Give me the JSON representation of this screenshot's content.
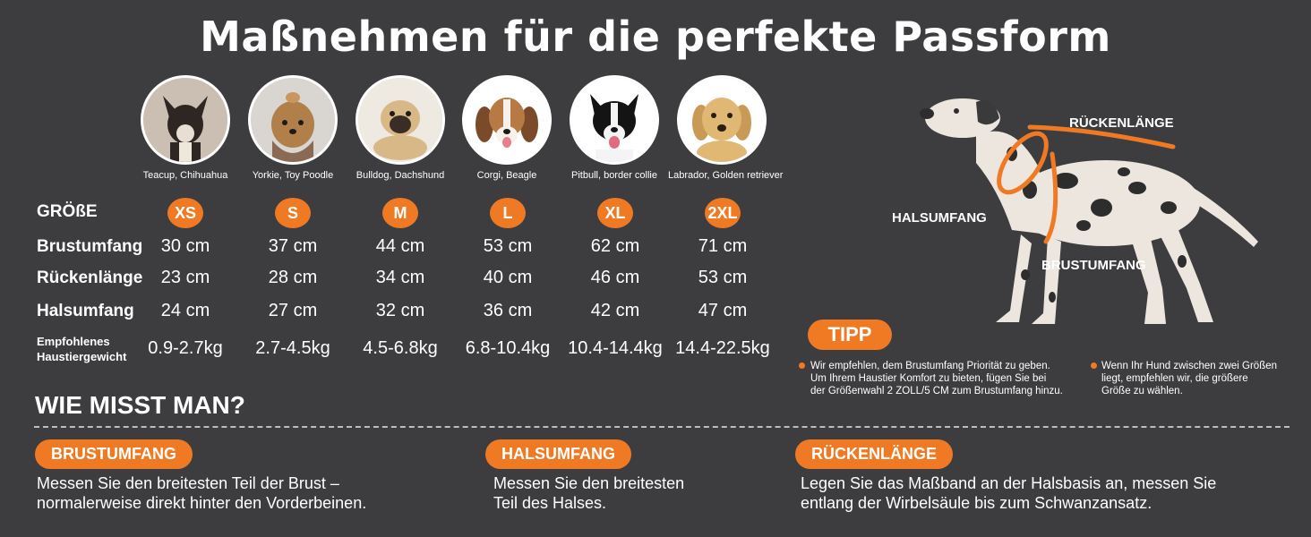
{
  "title": "Maßnehmen für die perfekte Passform",
  "dogs": [
    {
      "breed": "Teacup, Chihuahua",
      "size": "XS",
      "brust": "30 cm",
      "ruecken": "23 cm",
      "hals": "24 cm",
      "gewicht": "0.9-2.7kg",
      "icon": "chihuahua-photo"
    },
    {
      "breed": "Yorkie, Toy Poodle",
      "size": "S",
      "brust": "37 cm",
      "ruecken": "28 cm",
      "hals": "27 cm",
      "gewicht": "2.7-4.5kg",
      "icon": "yorkie-photo"
    },
    {
      "breed": "Bulldog, Dachshund",
      "size": "M",
      "brust": "44 cm",
      "ruecken": "34 cm",
      "hals": "32 cm",
      "gewicht": "4.5-6.8kg",
      "icon": "pug-photo"
    },
    {
      "breed": "Corgi, Beagle",
      "size": "L",
      "brust": "53 cm",
      "ruecken": "40 cm",
      "hals": "36 cm",
      "gewicht": "6.8-10.4kg",
      "icon": "beagle-photo"
    },
    {
      "breed": "Pitbull, border collie",
      "size": "XL",
      "brust": "62 cm",
      "ruecken": "46 cm",
      "hals": "42 cm",
      "gewicht": "10.4-14.4kg",
      "icon": "border-collie-photo"
    },
    {
      "breed": "Labrador, Golden retriever",
      "size": "2XL",
      "brust": "71 cm",
      "ruecken": "53 cm",
      "hals": "47 cm",
      "gewicht": "14.4-22.5kg",
      "icon": "golden-retriever-photo"
    }
  ],
  "row_labels": {
    "groesse": "GRÖßE",
    "brust": "Brustumfang",
    "ruecken": "Rückenlänge",
    "hals": "Halsumfang",
    "gewicht_line1": "Empfohlenes",
    "gewicht_line2": "Haustiergewicht"
  },
  "diagram": {
    "ruecken_label": "RÜCKENLÄNGE",
    "hals_label": "HALSUMFANG",
    "brust_label": "BRUSTUMFANG",
    "accent": "#f07a24"
  },
  "tipp": {
    "label": "TIPP",
    "tip1": [
      "Wir empfehlen, dem Brustumfang Priorität zu geben.",
      "Um Ihrem Haustier Komfort zu bieten, fügen Sie bei",
      "der Größenwahl 2 ZOLL/5 CM zum Brustumfang hinzu."
    ],
    "tip2": [
      "Wenn Ihr Hund zwischen zwei Größen",
      "liegt, empfehlen wir, die größere",
      "Größe zu wählen."
    ]
  },
  "how": {
    "heading": "WIE MISST MAN?",
    "brust": {
      "label": "BRUSTUMFANG",
      "line1": "Messen Sie den breitesten Teil der Brust –",
      "line2": "normalerweise direkt hinter den Vorderbeinen."
    },
    "hals": {
      "label": "HALSUMFANG",
      "line1": "Messen Sie den breitesten",
      "line2": "Teil des Halses."
    },
    "ruecken": {
      "label": "RÜCKENLÄNGE",
      "line1": "Legen Sie das Maßband an der Halsbasis an, messen Sie",
      "line2": "entlang der Wirbelsäule bis zum Schwanzansatz."
    }
  },
  "colors": {
    "background": "#3d3d3f",
    "accent": "#f07a24",
    "text": "#ffffff"
  }
}
